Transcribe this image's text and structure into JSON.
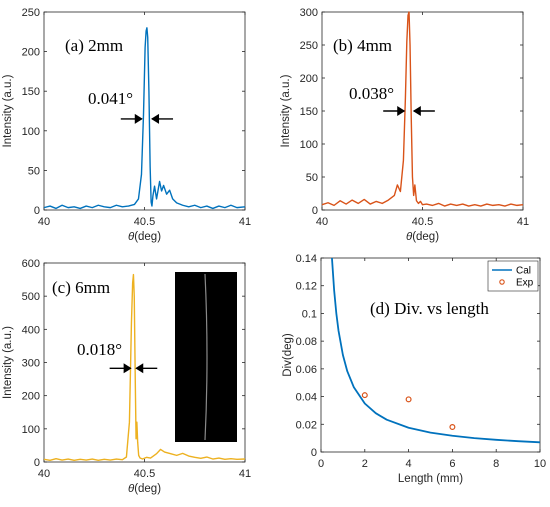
{
  "chart_data": [
    {
      "id": "a",
      "type": "line",
      "panel_label": "(a) 2mm",
      "annotation": "0.041°",
      "annotation_width_deg": 0.041,
      "xlabel": "θ(deg)",
      "ylabel": "Intensity (a.u.)",
      "xlim": [
        40,
        41
      ],
      "ylim": [
        0,
        250
      ],
      "xticks": [
        "40",
        "40.5",
        "41"
      ],
      "yticks": [
        "0",
        "50",
        "100",
        "150",
        "200",
        "250"
      ],
      "color": "#0072BD",
      "peak": {
        "x": 40.512,
        "y": 230
      },
      "series": [
        {
          "x": [
            40.0,
            40.03,
            40.06,
            40.09,
            40.12,
            40.15,
            40.18,
            40.21,
            40.24,
            40.27,
            40.3,
            40.33,
            40.36,
            40.39,
            40.42,
            40.45,
            40.47,
            40.485,
            40.495,
            40.503,
            40.508,
            40.512,
            40.516,
            40.522,
            40.528,
            40.533,
            40.537,
            40.542,
            40.55,
            40.56,
            40.575,
            40.585,
            40.595,
            40.61,
            40.625,
            40.64,
            40.66,
            40.69,
            40.72,
            40.75,
            40.78,
            40.81,
            40.84,
            40.87,
            40.9,
            40.93,
            40.96,
            41.0
          ],
          "y": [
            3,
            5,
            2,
            6,
            3,
            4,
            2,
            5,
            3,
            6,
            4,
            3,
            6,
            4,
            5,
            7,
            14,
            45,
            120,
            205,
            226,
            230,
            218,
            150,
            55,
            10,
            5,
            18,
            30,
            14,
            36,
            24,
            31,
            20,
            25,
            14,
            9,
            6,
            4,
            6,
            3,
            5,
            2,
            5,
            3,
            6,
            3,
            4
          ]
        }
      ]
    },
    {
      "id": "b",
      "type": "line",
      "panel_label": "(b) 4mm",
      "annotation": "0.038°",
      "annotation_width_deg": 0.038,
      "xlabel": "θ(deg)",
      "ylabel": "Intensity (a.u.)",
      "xlim": [
        40,
        41
      ],
      "ylim": [
        0,
        300
      ],
      "xticks": [
        "40",
        "40.5",
        "41"
      ],
      "yticks": [
        "0",
        "50",
        "100",
        "150",
        "200",
        "250",
        "300"
      ],
      "color": "#D95319",
      "peak": {
        "x": 40.433,
        "y": 300
      },
      "series": [
        {
          "x": [
            40.0,
            40.03,
            40.06,
            40.09,
            40.12,
            40.15,
            40.18,
            40.21,
            40.24,
            40.27,
            40.3,
            40.33,
            40.36,
            40.375,
            40.39,
            40.405,
            40.415,
            40.422,
            40.428,
            40.433,
            40.438,
            40.444,
            40.45,
            40.456,
            40.462,
            40.47,
            40.48,
            40.49,
            40.5,
            40.52,
            40.55,
            40.58,
            40.61,
            40.64,
            40.67,
            40.7,
            40.73,
            40.76,
            40.79,
            40.82,
            40.85,
            40.88,
            40.91,
            40.94,
            40.97,
            41.0
          ],
          "y": [
            8,
            11,
            7,
            14,
            9,
            15,
            10,
            16,
            9,
            13,
            10,
            15,
            22,
            38,
            28,
            75,
            170,
            255,
            295,
            300,
            250,
            140,
            50,
            22,
            38,
            14,
            10,
            13,
            8,
            9,
            7,
            10,
            6,
            9,
            7,
            9,
            6,
            8,
            6,
            9,
            7,
            8,
            6,
            9,
            7,
            8
          ]
        }
      ]
    },
    {
      "id": "c",
      "type": "line",
      "panel_label": "(c) 6mm",
      "annotation": "0.018°",
      "annotation_width_deg": 0.018,
      "xlabel": "θ(deg)",
      "ylabel": "Intensity (a.u.)",
      "xlim": [
        40,
        41
      ],
      "ylim": [
        0,
        600
      ],
      "xticks": [
        "40",
        "40.5",
        "41"
      ],
      "yticks": [
        "0",
        "100",
        "200",
        "300",
        "400",
        "500",
        "600"
      ],
      "color": "#EDB120",
      "peak": {
        "x": 40.445,
        "y": 565
      },
      "series": [
        {
          "x": [
            40.0,
            40.03,
            40.06,
            40.09,
            40.12,
            40.15,
            40.18,
            40.21,
            40.24,
            40.27,
            40.3,
            40.33,
            40.36,
            40.39,
            40.41,
            40.425,
            40.435,
            40.441,
            40.445,
            40.449,
            40.454,
            40.458,
            40.462,
            40.466,
            40.471,
            40.478,
            40.49,
            40.51,
            40.53,
            40.56,
            40.58,
            40.6,
            40.63,
            40.66,
            40.69,
            40.72,
            40.75,
            40.78,
            40.81,
            40.84,
            40.87,
            40.9,
            40.93,
            40.96,
            41.0
          ],
          "y": [
            8,
            5,
            10,
            6,
            9,
            5,
            8,
            6,
            9,
            5,
            8,
            6,
            9,
            7,
            15,
            120,
            420,
            540,
            565,
            500,
            250,
            70,
            120,
            60,
            20,
            12,
            9,
            14,
            12,
            25,
            38,
            30,
            25,
            20,
            26,
            18,
            14,
            11,
            15,
            9,
            12,
            8,
            10,
            8,
            9
          ]
        }
      ]
    },
    {
      "id": "d",
      "type": "line",
      "panel_label": "(d) Div. vs length",
      "xlabel": "Length (mm)",
      "ylabel": "Div(deg)",
      "xlim": [
        0,
        10
      ],
      "ylim": [
        0,
        0.14
      ],
      "xticks": [
        "0",
        "2",
        "4",
        "6",
        "8",
        "10"
      ],
      "yticks": [
        "0",
        "0.02",
        "0.04",
        "0.06",
        "0.08",
        "0.1",
        "0.12",
        "0.14"
      ],
      "legend": [
        "Cal",
        "Exp"
      ],
      "legend_position": "top-right",
      "series": [
        {
          "name": "Cal",
          "style": "line",
          "color": "#0072BD",
          "x": [
            0.5,
            0.6,
            0.7,
            0.8,
            1.0,
            1.2,
            1.5,
            2,
            2.5,
            3,
            4,
            5,
            6,
            7,
            8,
            9,
            10
          ],
          "y": [
            0.14,
            0.1167,
            0.1,
            0.0875,
            0.07,
            0.0583,
            0.0467,
            0.035,
            0.028,
            0.0233,
            0.0175,
            0.014,
            0.0117,
            0.01,
            0.0088,
            0.0078,
            0.007
          ]
        },
        {
          "name": "Exp",
          "style": "marker",
          "color": "#D95319",
          "x": [
            2,
            4,
            6
          ],
          "y": [
            0.041,
            0.038,
            0.018
          ]
        }
      ]
    }
  ]
}
